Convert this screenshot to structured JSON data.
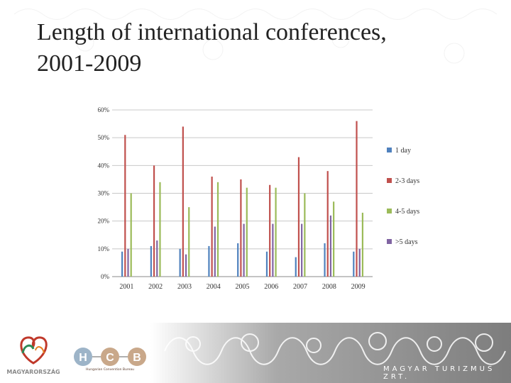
{
  "title": {
    "line1": "Length of international conferences,",
    "line2": "2001-2009"
  },
  "chart_data": {
    "type": "bar",
    "categories": [
      "2001",
      "2002",
      "2003",
      "2004",
      "2005",
      "2006",
      "2007",
      "2008",
      "2009"
    ],
    "yticks": [
      "0%",
      "10%",
      "20%",
      "30%",
      "40%",
      "50%",
      "60%"
    ],
    "ylim": [
      0,
      60
    ],
    "y_unit": "%",
    "legend_position": "right",
    "series": [
      {
        "name": "1 day",
        "color": "#4f81bd",
        "values": [
          9,
          11,
          10,
          11,
          12,
          9,
          7,
          12,
          9
        ]
      },
      {
        "name": "2-3 days",
        "color": "#c0504d",
        "values": [
          51,
          40,
          54,
          36,
          35,
          33,
          43,
          38,
          56
        ]
      },
      {
        "name": ">5 days",
        "color": "#8064a2",
        "values": [
          10,
          13,
          8,
          18,
          19,
          19,
          19,
          22,
          10
        ]
      },
      {
        "name": "4-5 days",
        "color": "#9bbb59",
        "values": [
          30,
          34,
          25,
          34,
          32,
          32,
          30,
          27,
          23
        ]
      }
    ],
    "legend_order": [
      "1 day",
      "2-3 days",
      "4-5 days",
      ">5 days"
    ],
    "grid": true
  },
  "footer": {
    "left_logo_text": "MAGYARORSZÁG",
    "hcb_letters": [
      "H",
      "C",
      "B"
    ],
    "hcb_subtitle": "Hungarian Convention Bureau",
    "right_text": "MAGYAR TURIZMUS ZRT."
  }
}
